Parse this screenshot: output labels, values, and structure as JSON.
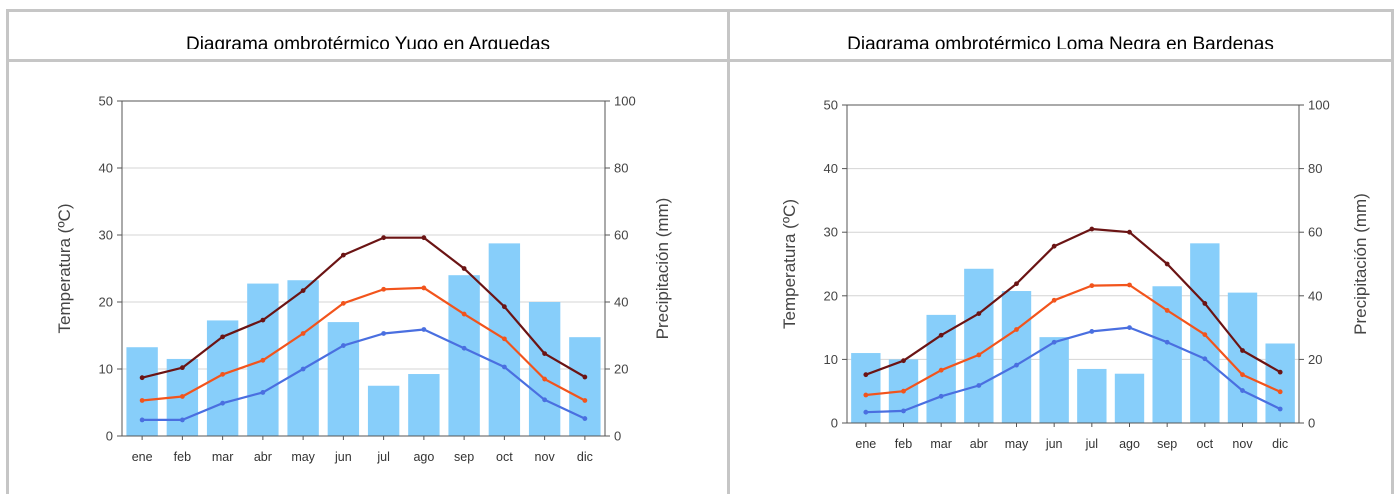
{
  "colors": {
    "precip_bar": "#87cefa",
    "t_max": "#6b1414",
    "t_mean": "#f2541c",
    "t_min": "#4a6fe0"
  },
  "chart_data": [
    {
      "type": "bar",
      "title": "Diagrama ombrotérmico Yugo en Arguedas",
      "ylabel": "Temperatura (ºC)",
      "y2label": "Precipitación (mm)",
      "ylim": [
        0,
        50
      ],
      "y2lim": [
        0,
        100
      ],
      "yticks": [
        "0",
        "10",
        "20",
        "30",
        "40",
        "50"
      ],
      "y2ticks": [
        "0",
        "20",
        "40",
        "60",
        "80",
        "100"
      ],
      "categories": [
        "ene",
        "feb",
        "mar",
        "abr",
        "may",
        "jun",
        "jul",
        "ago",
        "sep",
        "oct",
        "nov",
        "dic"
      ],
      "grid": true,
      "precipitation": [
        26.5,
        23,
        34.5,
        45.5,
        46.5,
        34,
        15,
        18.5,
        48,
        57.5,
        40,
        29.5
      ],
      "temp_max": [
        8.7,
        10.2,
        14.8,
        17.3,
        21.7,
        27,
        29.6,
        29.6,
        25,
        19.3,
        12.3,
        8.8
      ],
      "temp_mean": [
        5.3,
        5.9,
        9.2,
        11.3,
        15.3,
        19.8,
        21.9,
        22.1,
        18.2,
        14.5,
        8.5,
        5.3
      ],
      "temp_min": [
        2.4,
        2.4,
        4.9,
        6.5,
        10,
        13.5,
        15.3,
        15.9,
        13.1,
        10.3,
        5.4,
        2.6
      ]
    },
    {
      "type": "bar",
      "title": "Diagrama ombrotérmico Loma Negra en Bardenas",
      "ylabel": "Temperatura (ºC)",
      "y2label": "Precipitación (mm)",
      "ylim": [
        0,
        50
      ],
      "y2lim": [
        0,
        100
      ],
      "yticks": [
        "0",
        "10",
        "20",
        "30",
        "40",
        "50"
      ],
      "y2ticks": [
        "0",
        "20",
        "40",
        "60",
        "80",
        "100"
      ],
      "categories": [
        "ene",
        "feb",
        "mar",
        "abr",
        "may",
        "jun",
        "jul",
        "ago",
        "sep",
        "oct",
        "nov",
        "dic"
      ],
      "grid": true,
      "precipitation": [
        22,
        20,
        34,
        48.5,
        41.5,
        27,
        17,
        15.5,
        43,
        56.5,
        41,
        25
      ],
      "temp_max": [
        7.6,
        9.8,
        13.8,
        17.2,
        21.9,
        27.8,
        30.5,
        30,
        25,
        18.8,
        11.4,
        8
      ],
      "temp_mean": [
        4.4,
        5,
        8.3,
        10.7,
        14.7,
        19.3,
        21.6,
        21.7,
        17.7,
        13.9,
        7.6,
        4.9
      ],
      "temp_min": [
        1.7,
        1.9,
        4.2,
        5.9,
        9.1,
        12.7,
        14.4,
        15,
        12.7,
        10.1,
        5.1,
        2.2
      ]
    }
  ]
}
